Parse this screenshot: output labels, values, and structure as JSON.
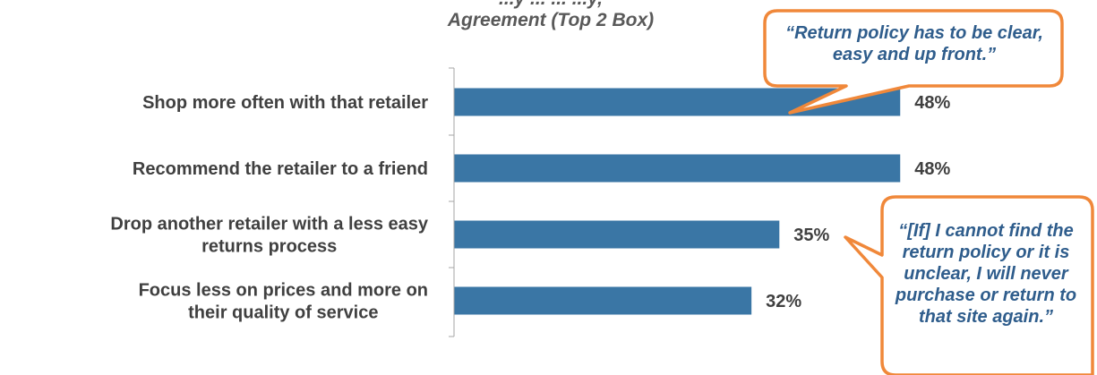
{
  "chart_data": {
    "type": "bar",
    "orientation": "horizontal",
    "title_lines": [
      "...y ... ... ...y,",
      "Agreement (Top 2 Box)"
    ],
    "categories": [
      [
        "Shop more often with that retailer"
      ],
      [
        "Recommend the retailer to a friend"
      ],
      [
        "Drop another retailer with a less easy",
        "returns process"
      ],
      [
        "Focus less on prices and more on",
        "their quality of service"
      ]
    ],
    "values": [
      48,
      48,
      35,
      32
    ],
    "value_labels": [
      "48%",
      "48%",
      "35%",
      "32%"
    ],
    "unit": "%",
    "xlim": [
      0,
      100
    ],
    "grid": false,
    "legend": "none"
  },
  "callouts": [
    {
      "text": "“Return policy has to be clear, easy and up front.”"
    },
    {
      "text": "“[If] I cannot find the return policy or it is unclear, I will never purchase or return to that site again.”"
    }
  ],
  "colors": {
    "bar": "#3a76a5",
    "label": "#404040",
    "value": "#404040",
    "axis": "#a6a6a6",
    "callout_border": "#f0883a",
    "callout_text": "#2f5d8c"
  }
}
